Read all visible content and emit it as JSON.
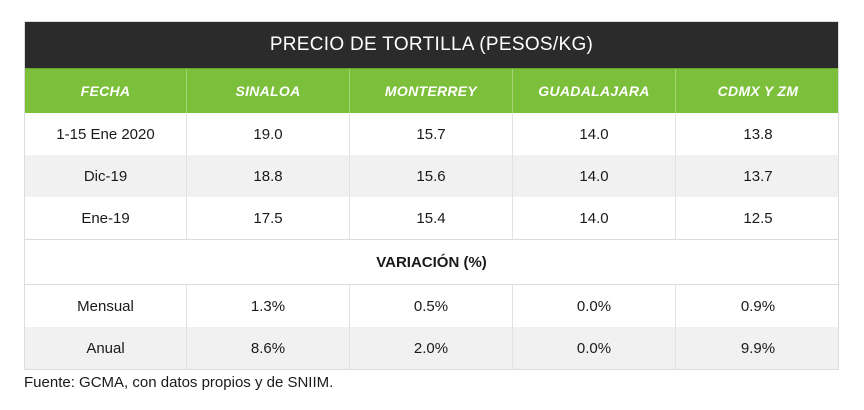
{
  "table": {
    "title": "PRECIO DE TORTILLA (PESOS/KG)",
    "headers": [
      "FECHA",
      "SINALOA",
      "MONTERREY",
      "GUADALAJARA",
      "CDMX Y ZM"
    ],
    "price_rows": [
      [
        "1-15 Ene 2020",
        "19.0",
        "15.7",
        "14.0",
        "13.8"
      ],
      [
        "Dic-19",
        "18.8",
        "15.6",
        "14.0",
        "13.7"
      ],
      [
        "Ene-19",
        "17.5",
        "15.4",
        "14.0",
        "12.5"
      ]
    ],
    "variation_title": "VARIACIÓN (%)",
    "variation_rows": [
      [
        "Mensual",
        "1.3%",
        "0.5%",
        "0.0%",
        "0.9%"
      ],
      [
        "Anual",
        "8.6%",
        "2.0%",
        "0.0%",
        "9.9%"
      ]
    ]
  },
  "footnote": "Fuente: GCMA, con datos propios y de SNIIM.",
  "colors": {
    "title_bg": "#2b2b2b",
    "header_bg": "#7bbf3a",
    "alt_row_bg": "#f1f1f1"
  }
}
